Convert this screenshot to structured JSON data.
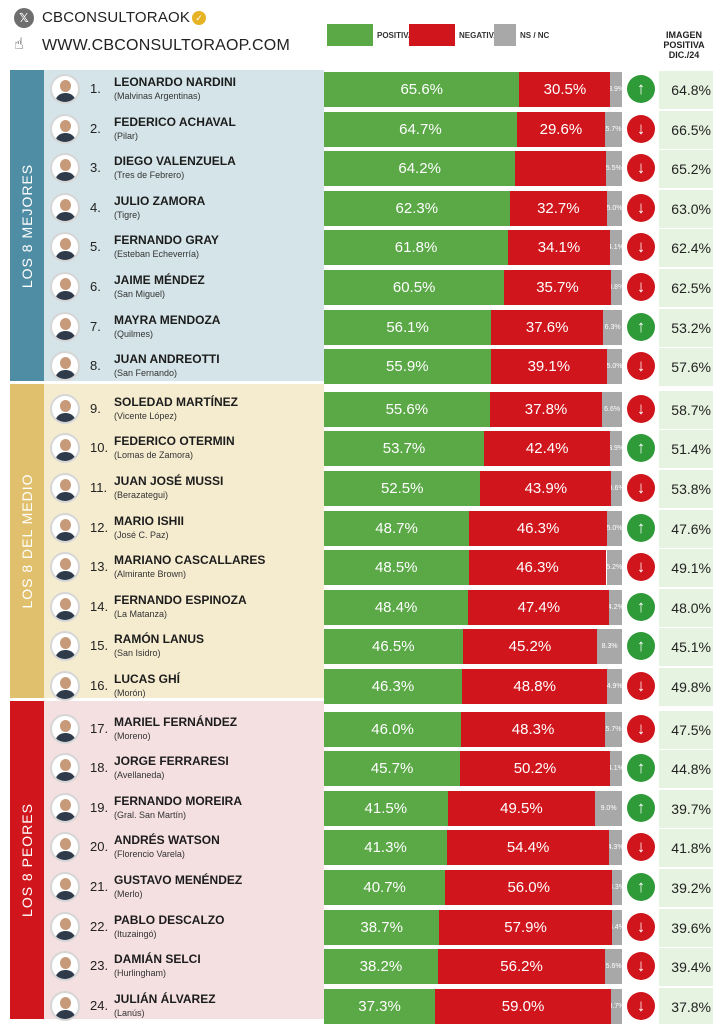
{
  "header": {
    "x_icon": "x-logo-icon",
    "handle": "CBCONSULTORAOK",
    "verified_icon": "verified-badge-icon",
    "hand_icon": "pointer-hand-icon",
    "website": "WWW.CBCONSULTORAOP.COM"
  },
  "colors": {
    "positive": "#5aa846",
    "negative": "#d0161c",
    "ns": "#a8a8a8",
    "up": "#2e9a38",
    "down": "#d0161c",
    "group_best_bg": "#d4e4e8",
    "group_mid_bg": "#f5ecd0",
    "group_worst_bg": "#f4dfe1",
    "group_best_label": "#4f8da4",
    "group_mid_label": "#e0c06c",
    "group_worst_label": "#d0161c",
    "image_col_bg": "#e6f3e0"
  },
  "chart_data": {
    "type": "bar",
    "stacked": true,
    "legend": [
      {
        "name": "POSITIVA",
        "color": "#5aa846"
      },
      {
        "name": "NEGATIVA",
        "color": "#d0161c"
      },
      {
        "name": "NS / NC",
        "color": "#a8a8a8"
      }
    ],
    "image_column_header": [
      "IMAGEN",
      "POSITIVA",
      "DIC./24"
    ],
    "groups": [
      {
        "label": "LOS 8 MEJORES",
        "from": 1,
        "to": 8
      },
      {
        "label": "LOS 8 DEL MEDIO",
        "from": 9,
        "to": 16
      },
      {
        "label": "LOS 8 PEORES",
        "from": 17,
        "to": 24
      }
    ],
    "rows": [
      {
        "rank": "1.",
        "name": "LEONARDO NARDINI",
        "district": "(Malvinas Argentinas)",
        "pos": 65.6,
        "neg": 30.5,
        "ns": 3.9,
        "pos_label": "65.6%",
        "neg_label": "30.5%",
        "ns_label": "3.9%",
        "trend": "up",
        "prev": "64.8%"
      },
      {
        "rank": "2.",
        "name": "FEDERICO ACHAVAL",
        "district": "(Pilar)",
        "pos": 64.7,
        "neg": 29.6,
        "ns": 5.7,
        "pos_label": "64.7%",
        "neg_label": "29.6%",
        "ns_label": "5.7%",
        "trend": "down",
        "prev": "66.5%"
      },
      {
        "rank": "3.",
        "name": "DIEGO VALENZUELA",
        "district": "(Tres de Febrero)",
        "pos": 64.2,
        "neg": 30.3,
        "ns": 5.5,
        "pos_label": "64.2%",
        "neg_label": "",
        "ns_label": "5.5%",
        "trend": "down",
        "prev": "65.2%"
      },
      {
        "rank": "4.",
        "name": "JULIO ZAMORA",
        "district": "(Tigre)",
        "pos": 62.3,
        "neg": 32.7,
        "ns": 5.0,
        "pos_label": "62.3%",
        "neg_label": "32.7%",
        "ns_label": "5.0%",
        "trend": "down",
        "prev": "63.0%"
      },
      {
        "rank": "5.",
        "name": "FERNANDO GRAY",
        "district": "(Esteban Echeverría)",
        "pos": 61.8,
        "neg": 34.1,
        "ns": 4.1,
        "pos_label": "61.8%",
        "neg_label": "34.1%",
        "ns_label": "4.1%",
        "trend": "down",
        "prev": "62.4%"
      },
      {
        "rank": "6.",
        "name": "JAIME MÉNDEZ",
        "district": "(San Miguel)",
        "pos": 60.5,
        "neg": 35.7,
        "ns": 3.8,
        "pos_label": "60.5%",
        "neg_label": "35.7%",
        "ns_label": "3.8%",
        "trend": "down",
        "prev": "62.5%"
      },
      {
        "rank": "7.",
        "name": "MAYRA MENDOZA",
        "district": "(Quilmes)",
        "pos": 56.1,
        "neg": 37.6,
        "ns": 6.3,
        "pos_label": "56.1%",
        "neg_label": "37.6%",
        "ns_label": "6.3%",
        "trend": "up",
        "prev": "53.2%"
      },
      {
        "rank": "8.",
        "name": "JUAN ANDREOTTI",
        "district": "(San Fernando)",
        "pos": 55.9,
        "neg": 39.1,
        "ns": 5.0,
        "pos_label": "55.9%",
        "neg_label": "39.1%",
        "ns_label": "5.0%",
        "trend": "down",
        "prev": "57.6%"
      },
      {
        "rank": "9.",
        "name": "SOLEDAD MARTÍNEZ",
        "district": "(Vicente López)",
        "pos": 55.6,
        "neg": 37.8,
        "ns": 6.6,
        "pos_label": "55.6%",
        "neg_label": "37.8%",
        "ns_label": "6.6%",
        "trend": "down",
        "prev": "58.7%"
      },
      {
        "rank": "10.",
        "name": "FEDERICO OTERMIN",
        "district": "(Lomas de Zamora)",
        "pos": 53.7,
        "neg": 42.4,
        "ns": 3.9,
        "pos_label": "53.7%",
        "neg_label": "42.4%",
        "ns_label": "3.9%",
        "trend": "up",
        "prev": "51.4%"
      },
      {
        "rank": "11.",
        "name": "JUAN JOSÉ MUSSI",
        "district": "(Berazategui)",
        "pos": 52.5,
        "neg": 43.9,
        "ns": 3.6,
        "pos_label": "52.5%",
        "neg_label": "43.9%",
        "ns_label": "3.6%",
        "trend": "down",
        "prev": "53.8%"
      },
      {
        "rank": "12.",
        "name": "MARIO ISHII",
        "district": "(José C. Paz)",
        "pos": 48.7,
        "neg": 46.3,
        "ns": 5.0,
        "pos_label": "48.7%",
        "neg_label": "46.3%",
        "ns_label": "5.0%",
        "trend": "up",
        "prev": "47.6%"
      },
      {
        "rank": "13.",
        "name": "MARIANO CASCALLARES",
        "district": "(Almirante Brown)",
        "pos": 48.5,
        "neg": 46.3,
        "ns": 5.2,
        "pos_label": "48.5%",
        "neg_label": "46.3%",
        "ns_label": "5.2%",
        "trend": "down",
        "prev": "49.1%"
      },
      {
        "rank": "14.",
        "name": "FERNANDO ESPINOZA",
        "district": "(La Matanza)",
        "pos": 48.4,
        "neg": 47.4,
        "ns": 4.2,
        "pos_label": "48.4%",
        "neg_label": "47.4%",
        "ns_label": "4.2%",
        "trend": "up",
        "prev": "48.0%"
      },
      {
        "rank": "15.",
        "name": "RAMÓN LANUS",
        "district": "(San Isidro)",
        "pos": 46.5,
        "neg": 45.2,
        "ns": 8.3,
        "pos_label": "46.5%",
        "neg_label": "45.2%",
        "ns_label": "8.3%",
        "trend": "up",
        "prev": "45.1%"
      },
      {
        "rank": "16.",
        "name": "LUCAS GHÍ",
        "district": "(Morón)",
        "pos": 46.3,
        "neg": 48.8,
        "ns": 4.9,
        "pos_label": "46.3%",
        "neg_label": "48.8%",
        "ns_label": "4.9%",
        "trend": "down",
        "prev": "49.8%"
      },
      {
        "rank": "17.",
        "name": "MARIEL FERNÁNDEZ",
        "district": "(Moreno)",
        "pos": 46.0,
        "neg": 48.3,
        "ns": 5.7,
        "pos_label": "46.0%",
        "neg_label": "48.3%",
        "ns_label": "5.7%",
        "trend": "down",
        "prev": "47.5%"
      },
      {
        "rank": "18.",
        "name": "JORGE FERRARESI",
        "district": "(Avellaneda)",
        "pos": 45.7,
        "neg": 50.2,
        "ns": 4.1,
        "pos_label": "45.7%",
        "neg_label": "50.2%",
        "ns_label": "4.1%",
        "trend": "up",
        "prev": "44.8%"
      },
      {
        "rank": "19.",
        "name": "FERNANDO MOREIRA",
        "district": "(Gral. San Martín)",
        "pos": 41.5,
        "neg": 49.5,
        "ns": 9.0,
        "pos_label": "41.5%",
        "neg_label": "49.5%",
        "ns_label": "9.0%",
        "trend": "up",
        "prev": "39.7%"
      },
      {
        "rank": "20.",
        "name": "ANDRÉS WATSON",
        "district": "(Florencio Varela)",
        "pos": 41.3,
        "neg": 54.4,
        "ns": 4.3,
        "pos_label": "41.3%",
        "neg_label": "54.4%",
        "ns_label": "4.3%",
        "trend": "down",
        "prev": "41.8%"
      },
      {
        "rank": "21.",
        "name": "GUSTAVO MENÉNDEZ",
        "district": "(Merlo)",
        "pos": 40.7,
        "neg": 56.0,
        "ns": 3.3,
        "pos_label": "40.7%",
        "neg_label": "56.0%",
        "ns_label": "3.3%",
        "trend": "up",
        "prev": "39.2%"
      },
      {
        "rank": "22.",
        "name": "PABLO DESCALZO",
        "district": "(Ituzaingó)",
        "pos": 38.7,
        "neg": 57.9,
        "ns": 3.4,
        "pos_label": "38.7%",
        "neg_label": "57.9%",
        "ns_label": "3.4%",
        "trend": "down",
        "prev": "39.6%"
      },
      {
        "rank": "23.",
        "name": "DAMIÁN SELCI",
        "district": "(Hurlingham)",
        "pos": 38.2,
        "neg": 56.2,
        "ns": 5.6,
        "pos_label": "38.2%",
        "neg_label": "56.2%",
        "ns_label": "5.6%",
        "trend": "down",
        "prev": "39.4%"
      },
      {
        "rank": "24.",
        "name": "JULIÁN ÁLVAREZ",
        "district": "(Lanús)",
        "pos": 37.3,
        "neg": 59.0,
        "ns": 3.7,
        "pos_label": "37.3%",
        "neg_label": "59.0%",
        "ns_label": "3.7%",
        "trend": "down",
        "prev": "37.8%"
      }
    ]
  }
}
